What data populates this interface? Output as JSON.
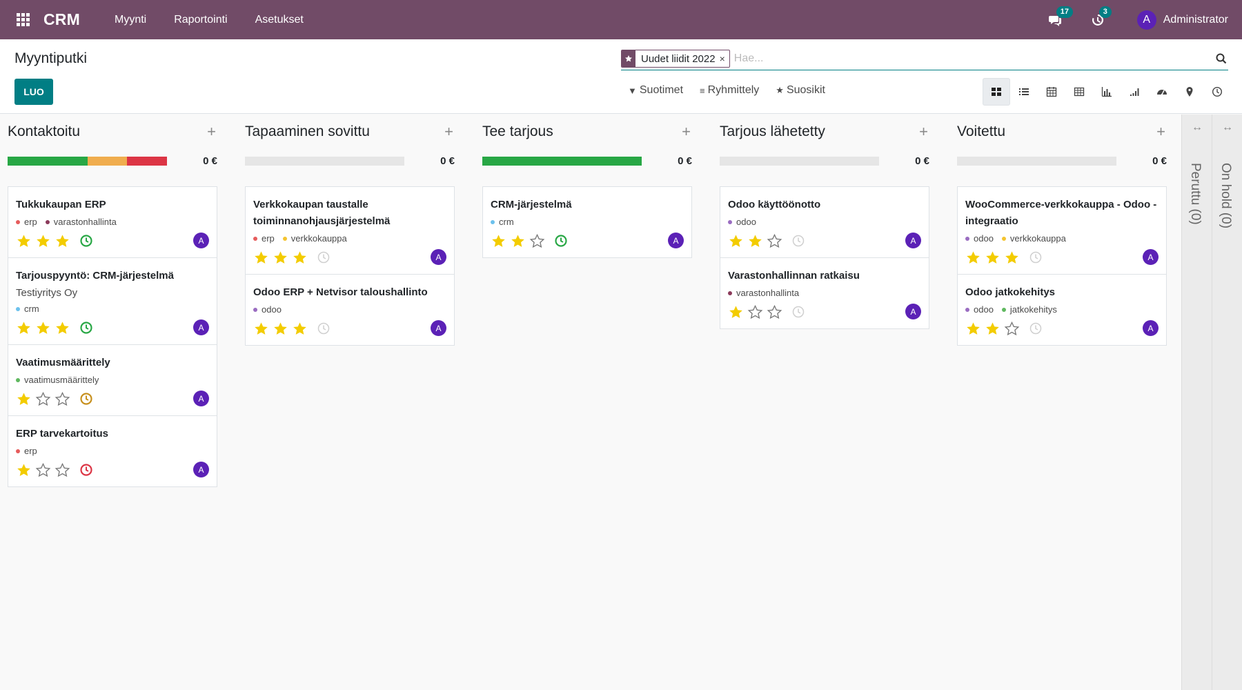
{
  "navbar": {
    "app_name": "CRM",
    "menu": [
      "Myynti",
      "Raportointi",
      "Asetukset"
    ],
    "messages_count": "17",
    "activities_count": "3",
    "user_initial": "A",
    "user_name": "Administrator",
    "color": "#714b67"
  },
  "control": {
    "title": "Myyntiputki",
    "create_label": "LUO",
    "facet_label": "Uudet liidit 2022",
    "facet_remove": "×",
    "search_placeholder": "Hae...",
    "filters_label": "Suotimet",
    "groupby_label": "Ryhmittely",
    "favorites_label": "Suosikit",
    "views": [
      "kanban",
      "list",
      "calendar",
      "pivot",
      "graph",
      "cohort",
      "dashboard",
      "map",
      "activity"
    ],
    "active_view": "kanban"
  },
  "columns": [
    {
      "title": "Kontaktoitu",
      "add": "+",
      "sum": "0 €",
      "progress": [
        {
          "color": "#28a745",
          "fraction": 0.5
        },
        {
          "color": "#f0ad4e",
          "fraction": 0.25
        },
        {
          "color": "#dc3545",
          "fraction": 0.25
        }
      ],
      "cards": [
        {
          "title": "Tukkukaupan ERP",
          "tags": [
            {
              "name": "erp",
              "color": "#e65c5c"
            },
            {
              "name": "varastonhallinta",
              "color": "#8b3a5a"
            }
          ],
          "rating": 3,
          "activity": "green",
          "avatar": "A"
        },
        {
          "title": "Tarjouspyyntö: CRM-järjestelmä",
          "company": "Testiyritys Oy",
          "tags": [
            {
              "name": "crm",
              "color": "#6cc1ed"
            }
          ],
          "rating": 3,
          "activity": "green",
          "avatar": "A"
        },
        {
          "title": "Vaatimusmäärittely",
          "tags": [
            {
              "name": "vaatimusmäärittely",
              "color": "#5fb85f"
            }
          ],
          "rating": 1,
          "activity": "orange",
          "avatar": "A"
        },
        {
          "title": "ERP tarvekartoitus",
          "tags": [
            {
              "name": "erp",
              "color": "#e65c5c"
            }
          ],
          "rating": 1,
          "activity": "red",
          "avatar": "A"
        }
      ]
    },
    {
      "title": "Tapaaminen sovittu",
      "add": "+",
      "sum": "0 €",
      "progress": [],
      "cards": [
        {
          "title": "Verkkokaupan taustalle toiminnanohjausjärjestelmä",
          "tags": [
            {
              "name": "erp",
              "color": "#e65c5c"
            },
            {
              "name": "verkkokauppa",
              "color": "#f4c430"
            }
          ],
          "rating": 3,
          "activity": "none",
          "avatar": "A"
        },
        {
          "title": "Odoo ERP + Netvisor taloushallinto",
          "tags": [
            {
              "name": "odoo",
              "color": "#9a6cc1"
            }
          ],
          "rating": 3,
          "activity": "none",
          "avatar": "A"
        }
      ]
    },
    {
      "title": "Tee tarjous",
      "add": "+",
      "sum": "0 €",
      "progress": [
        {
          "color": "#28a745",
          "fraction": 1
        }
      ],
      "cards": [
        {
          "title": "CRM-järjestelmä",
          "tags": [
            {
              "name": "crm",
              "color": "#6cc1ed"
            }
          ],
          "rating": 2,
          "activity": "green",
          "avatar": "A"
        }
      ]
    },
    {
      "title": "Tarjous lähetetty",
      "add": "+",
      "sum": "0 €",
      "progress": [],
      "cards": [
        {
          "title": "Odoo käyttöönotto",
          "tags": [
            {
              "name": "odoo",
              "color": "#9a6cc1"
            }
          ],
          "rating": 2,
          "activity": "none",
          "avatar": "A"
        },
        {
          "title": "Varastonhallinnan ratkaisu",
          "tags": [
            {
              "name": "varastonhallinta",
              "color": "#8b3a5a"
            }
          ],
          "rating": 1,
          "activity": "none",
          "avatar": "A"
        }
      ]
    },
    {
      "title": "Voitettu",
      "add": "+",
      "sum": "0 €",
      "progress": [],
      "cards": [
        {
          "title": "WooCommerce-verkkokauppa - Odoo -integraatio",
          "tags": [
            {
              "name": "odoo",
              "color": "#9a6cc1"
            },
            {
              "name": "verkkokauppa",
              "color": "#f4c430"
            }
          ],
          "rating": 3,
          "activity": "none",
          "avatar": "A"
        },
        {
          "title": "Odoo jatkokehitys",
          "tags": [
            {
              "name": "odoo",
              "color": "#9a6cc1"
            },
            {
              "name": "jatkokehitys",
              "color": "#5fb85f"
            }
          ],
          "rating": 2,
          "activity": "none",
          "avatar": "A"
        }
      ]
    }
  ],
  "folded_columns": [
    {
      "label": "Peruttu (0)",
      "arrow": "↔"
    },
    {
      "label": "On hold (0)",
      "arrow": "↔"
    }
  ],
  "colors": {
    "accent": "#017e84",
    "avatar": "#5b21b6",
    "star": "#f3cc00"
  }
}
